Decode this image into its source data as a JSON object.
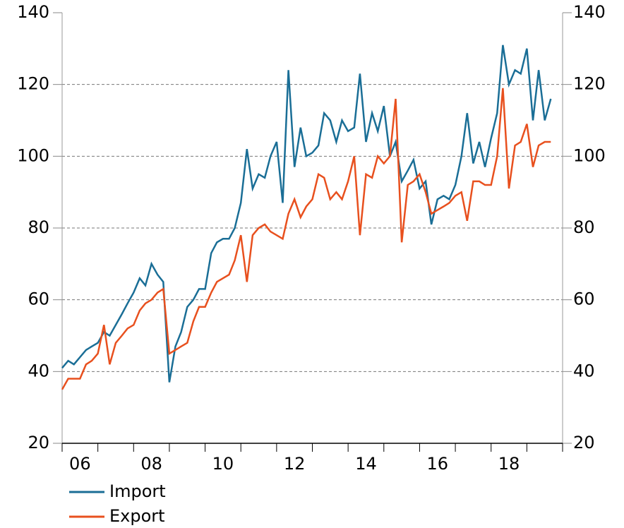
{
  "chart_data": {
    "type": "line",
    "x": [
      2006.0,
      2006.17,
      2006.33,
      2006.5,
      2006.67,
      2006.83,
      2007.0,
      2007.17,
      2007.33,
      2007.5,
      2007.67,
      2007.83,
      2008.0,
      2008.17,
      2008.33,
      2008.5,
      2008.67,
      2008.83,
      2009.0,
      2009.17,
      2009.33,
      2009.5,
      2009.67,
      2009.83,
      2010.0,
      2010.17,
      2010.33,
      2010.5,
      2010.67,
      2010.83,
      2011.0,
      2011.17,
      2011.33,
      2011.5,
      2011.67,
      2011.83,
      2012.0,
      2012.17,
      2012.33,
      2012.5,
      2012.67,
      2012.83,
      2013.0,
      2013.17,
      2013.33,
      2013.5,
      2013.67,
      2013.83,
      2014.0,
      2014.17,
      2014.33,
      2014.5,
      2014.67,
      2014.83,
      2015.0,
      2015.17,
      2015.33,
      2015.5,
      2015.67,
      2015.83,
      2016.0,
      2016.17,
      2016.33,
      2016.5,
      2016.67,
      2016.83,
      2017.0,
      2017.17,
      2017.33,
      2017.5,
      2017.67,
      2017.83,
      2018.0,
      2018.17,
      2018.33,
      2018.5,
      2018.67,
      2018.83,
      2019.0,
      2019.17,
      2019.33,
      2019.5,
      2019.67
    ],
    "series": [
      {
        "name": "Import",
        "color": "#1a6e96",
        "values": [
          41,
          43,
          42,
          44,
          46,
          47,
          48,
          51,
          50,
          53,
          56,
          59,
          62,
          66,
          64,
          70,
          67,
          65,
          37,
          47,
          51,
          58,
          60,
          63,
          63,
          73,
          76,
          77,
          77,
          80,
          87,
          102,
          91,
          95,
          94,
          100,
          104,
          87,
          124,
          97,
          108,
          100,
          101,
          103,
          112,
          110,
          104,
          110,
          107,
          108,
          123,
          104,
          112,
          107,
          114,
          100,
          104,
          93,
          96,
          99,
          91,
          93,
          81,
          88,
          89,
          88,
          92,
          100,
          112,
          98,
          104,
          97,
          105,
          112,
          131,
          120,
          124,
          123,
          130,
          110,
          124,
          110,
          116
        ]
      },
      {
        "name": "Export",
        "color": "#e8501e",
        "values": [
          35,
          38,
          38,
          38,
          42,
          43,
          45,
          53,
          42,
          48,
          50,
          52,
          53,
          57,
          59,
          60,
          62,
          63,
          45,
          46,
          47,
          48,
          54,
          58,
          58,
          62,
          65,
          66,
          67,
          71,
          78,
          65,
          78,
          80,
          81,
          79,
          78,
          77,
          84,
          88,
          83,
          86,
          88,
          95,
          94,
          88,
          90,
          88,
          93,
          100,
          78,
          95,
          94,
          100,
          98,
          100,
          116,
          76,
          92,
          93,
          95,
          90,
          84,
          85,
          86,
          87,
          89,
          90,
          82,
          93,
          93,
          92,
          92,
          100,
          119,
          91,
          103,
          104,
          109,
          97,
          103,
          104,
          104
        ]
      }
    ],
    "xlim": [
      2006,
      2020
    ],
    "xticks": [
      {
        "value": 2006.5,
        "label": "06"
      },
      {
        "value": 2008.5,
        "label": "08"
      },
      {
        "value": 2010.5,
        "label": "10"
      },
      {
        "value": 2012.5,
        "label": "12"
      },
      {
        "value": 2014.5,
        "label": "14"
      },
      {
        "value": 2016.5,
        "label": "16"
      },
      {
        "value": 2018.5,
        "label": "18"
      }
    ],
    "xminor_ticks": [
      2006,
      2007,
      2008,
      2009,
      2010,
      2011,
      2012,
      2013,
      2014,
      2015,
      2016,
      2017,
      2018,
      2019,
      2020
    ],
    "ylim": [
      20,
      140
    ],
    "yticks": [
      20,
      40,
      60,
      80,
      100,
      120,
      140
    ],
    "y2lim": [
      20,
      140
    ],
    "y2ticks": [
      20,
      40,
      60,
      80,
      100,
      120,
      140
    ],
    "grid": true
  }
}
